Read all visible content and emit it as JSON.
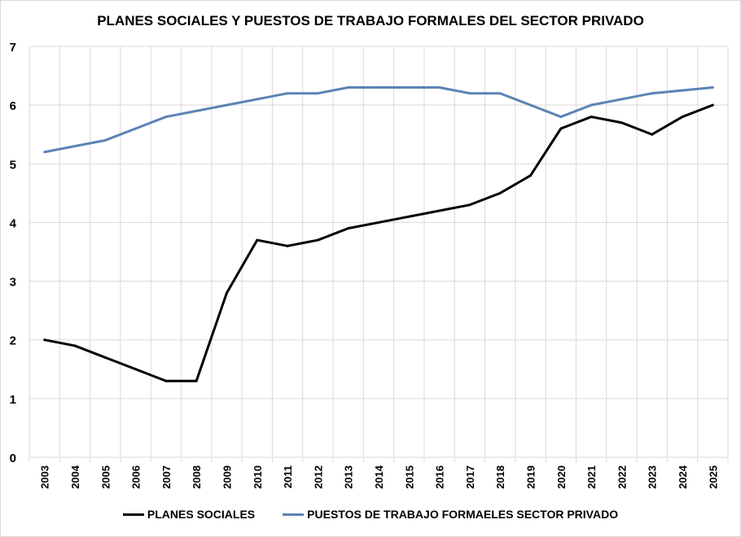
{
  "chart_data": {
    "type": "line",
    "title": "PLANES SOCIALES Y PUESTOS DE TRABAJO FORMALES DEL SECTOR PRIVADO",
    "xlabel": "",
    "ylabel": "",
    "ylim": [
      0,
      7
    ],
    "yticks": [
      "0",
      "1",
      "2",
      "3",
      "4",
      "5",
      "6",
      "7"
    ],
    "grid": true,
    "legend_position": "bottom",
    "categories": [
      "2003",
      "2004",
      "2005",
      "2006",
      "2007",
      "2008",
      "2009",
      "2010",
      "2011",
      "2012",
      "2013",
      "2014",
      "2015",
      "2016",
      "2017",
      "2018",
      "2019",
      "2020",
      "2021",
      "2022",
      "2023",
      "2024",
      "2025"
    ],
    "series": [
      {
        "name": "PLANES SOCIALES",
        "color": "#000000",
        "values": [
          2.0,
          1.9,
          1.7,
          1.5,
          1.3,
          1.3,
          2.8,
          3.7,
          3.6,
          3.7,
          3.9,
          4.0,
          4.1,
          4.2,
          4.3,
          4.5,
          4.8,
          5.6,
          5.8,
          5.7,
          5.5,
          5.8,
          6.0
        ]
      },
      {
        "name": "PUESTOS DE TRABAJO FORMAELES SECTOR PRIVADO",
        "color": "#5b83b5",
        "values": [
          5.2,
          5.3,
          5.4,
          5.6,
          5.8,
          5.9,
          6.0,
          6.1,
          6.2,
          6.2,
          6.3,
          6.3,
          6.3,
          6.3,
          6.2,
          6.2,
          6.0,
          5.8,
          6.0,
          6.1,
          6.2,
          6.25,
          6.3
        ]
      }
    ]
  }
}
